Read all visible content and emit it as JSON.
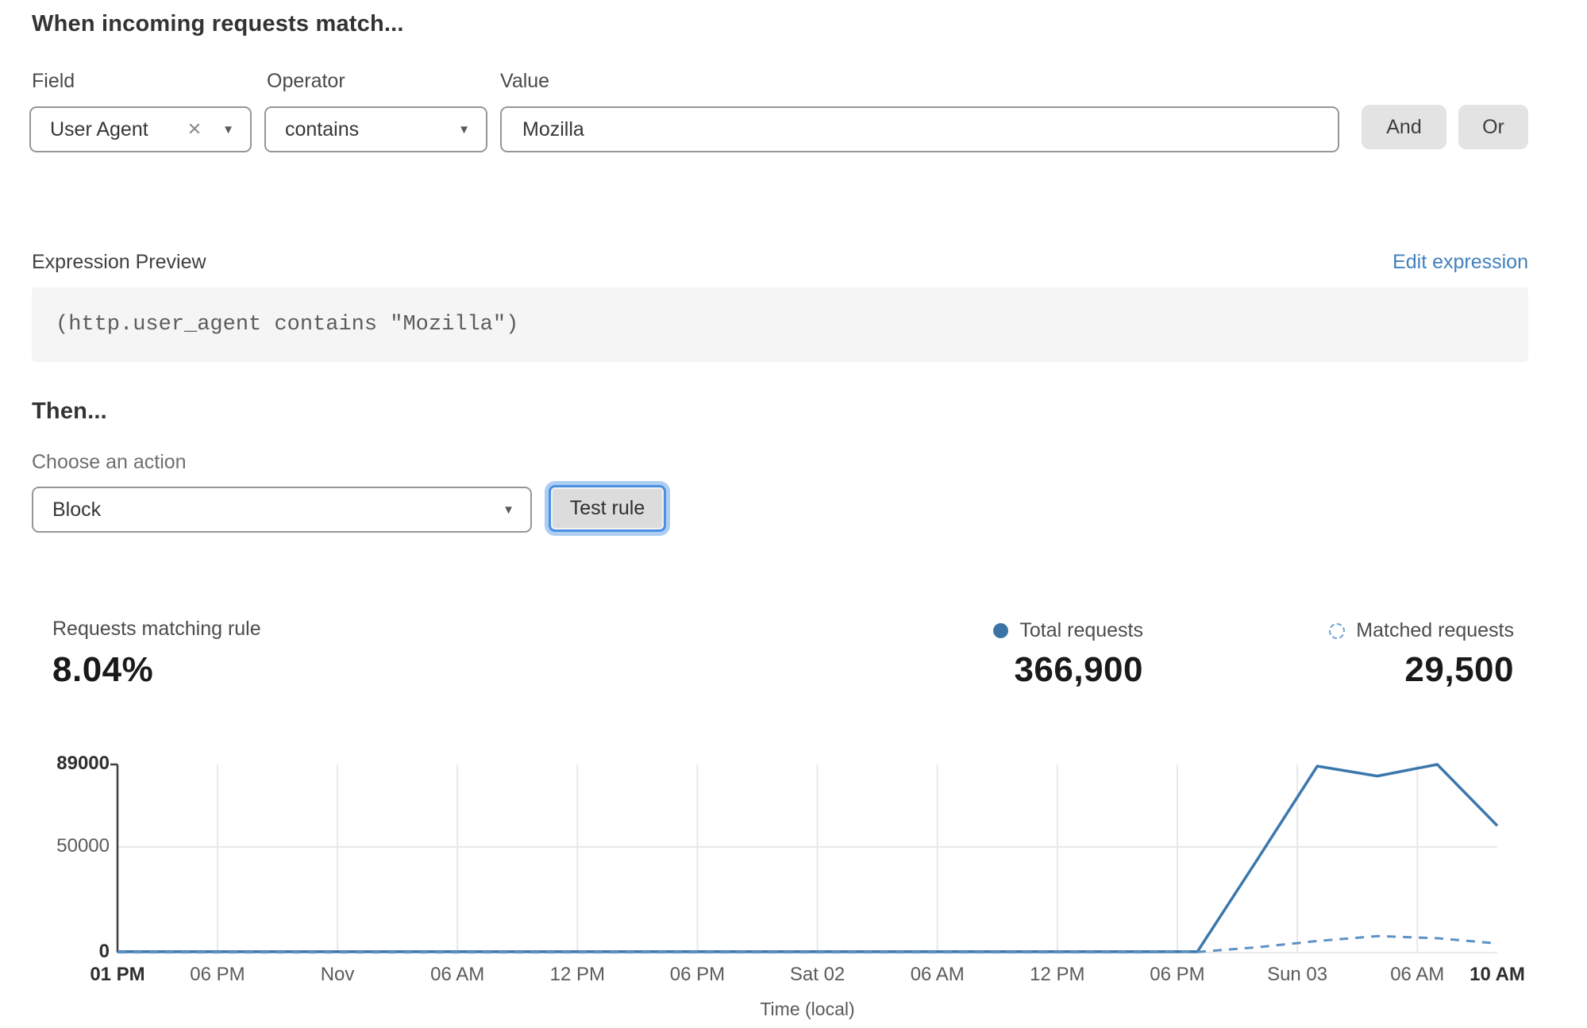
{
  "rule_builder": {
    "title": "When incoming requests match...",
    "field": {
      "label": "Field",
      "value": "User Agent"
    },
    "operator": {
      "label": "Operator",
      "value": "contains"
    },
    "value": {
      "label": "Value",
      "value": "Mozilla"
    },
    "and_label": "And",
    "or_label": "Or"
  },
  "icons": {
    "clear": "✕",
    "caret": "▼"
  },
  "expression": {
    "label": "Expression Preview",
    "edit_link": "Edit expression",
    "code": "(http.user_agent contains \"Mozilla\")"
  },
  "action": {
    "title": "Then...",
    "choose_label": "Choose an action",
    "value": "Block",
    "test_button": "Test rule"
  },
  "stats": {
    "matching": {
      "label": "Requests matching rule",
      "value": "8.04%"
    },
    "total": {
      "label": "Total requests",
      "value": "366,900"
    },
    "matched": {
      "label": "Matched requests",
      "value": "29,500"
    }
  },
  "colors": {
    "accent_line": "#3c77ac",
    "accent_dashed": "#5d92c4",
    "link_blue": "#4181bd",
    "focus_ring": "#aecdf2",
    "button_gray": "#e3e3e3",
    "code_bg": "#f5f5f5"
  },
  "chart_data": {
    "type": "line",
    "title": "",
    "xlabel": "Time (local)",
    "ylabel": "",
    "x_unit": "hours since Fri 01 PM (local)",
    "x_max_hours": 69,
    "ylim": [
      0,
      89000
    ],
    "grid": true,
    "legend_position": "top-right",
    "yticks": [
      {
        "value": 0,
        "label": "0",
        "bold": true,
        "grid": true
      },
      {
        "value": 50000,
        "label": "50000",
        "bold": false,
        "grid": true
      },
      {
        "value": 89000,
        "label": "89000",
        "bold": true,
        "grid": false
      }
    ],
    "xticks": [
      {
        "t": 0,
        "label": "01 PM",
        "bold": true,
        "grid": false
      },
      {
        "t": 5,
        "label": "06 PM",
        "bold": false,
        "grid": true
      },
      {
        "t": 11,
        "label": "Nov",
        "bold": false,
        "grid": true
      },
      {
        "t": 17,
        "label": "06 AM",
        "bold": false,
        "grid": true
      },
      {
        "t": 23,
        "label": "12 PM",
        "bold": false,
        "grid": true
      },
      {
        "t": 29,
        "label": "06 PM",
        "bold": false,
        "grid": true
      },
      {
        "t": 35,
        "label": "Sat 02",
        "bold": false,
        "grid": true
      },
      {
        "t": 41,
        "label": "06 AM",
        "bold": false,
        "grid": true
      },
      {
        "t": 47,
        "label": "12 PM",
        "bold": false,
        "grid": true
      },
      {
        "t": 53,
        "label": "06 PM",
        "bold": false,
        "grid": true
      },
      {
        "t": 59,
        "label": "Sun 03",
        "bold": false,
        "grid": true
      },
      {
        "t": 65,
        "label": "06 AM",
        "bold": false,
        "grid": true
      },
      {
        "t": 69,
        "label": "10 AM",
        "bold": true,
        "grid": false
      }
    ],
    "series": [
      {
        "name": "Total requests",
        "style": "solid",
        "points": [
          [
            0,
            400
          ],
          [
            3,
            400
          ],
          [
            6,
            400
          ],
          [
            9,
            400
          ],
          [
            12,
            400
          ],
          [
            15,
            400
          ],
          [
            18,
            400
          ],
          [
            21,
            400
          ],
          [
            24,
            400
          ],
          [
            27,
            400
          ],
          [
            30,
            400
          ],
          [
            33,
            400
          ],
          [
            36,
            400
          ],
          [
            39,
            400
          ],
          [
            42,
            400
          ],
          [
            45,
            400
          ],
          [
            48,
            400
          ],
          [
            51,
            400
          ],
          [
            54,
            400
          ],
          [
            57,
            44000
          ],
          [
            60,
            88200
          ],
          [
            63,
            83500
          ],
          [
            66,
            89000
          ],
          [
            69,
            60000
          ]
        ]
      },
      {
        "name": "Matched requests",
        "style": "dashed",
        "points": [
          [
            0,
            150
          ],
          [
            3,
            150
          ],
          [
            6,
            150
          ],
          [
            9,
            150
          ],
          [
            12,
            150
          ],
          [
            15,
            150
          ],
          [
            18,
            150
          ],
          [
            21,
            150
          ],
          [
            24,
            150
          ],
          [
            27,
            150
          ],
          [
            30,
            150
          ],
          [
            33,
            150
          ],
          [
            36,
            150
          ],
          [
            39,
            150
          ],
          [
            42,
            150
          ],
          [
            45,
            150
          ],
          [
            48,
            150
          ],
          [
            51,
            150
          ],
          [
            54,
            300
          ],
          [
            57,
            2500
          ],
          [
            60,
            5500
          ],
          [
            63,
            7800
          ],
          [
            66,
            6800
          ],
          [
            69,
            4300
          ]
        ]
      }
    ]
  }
}
